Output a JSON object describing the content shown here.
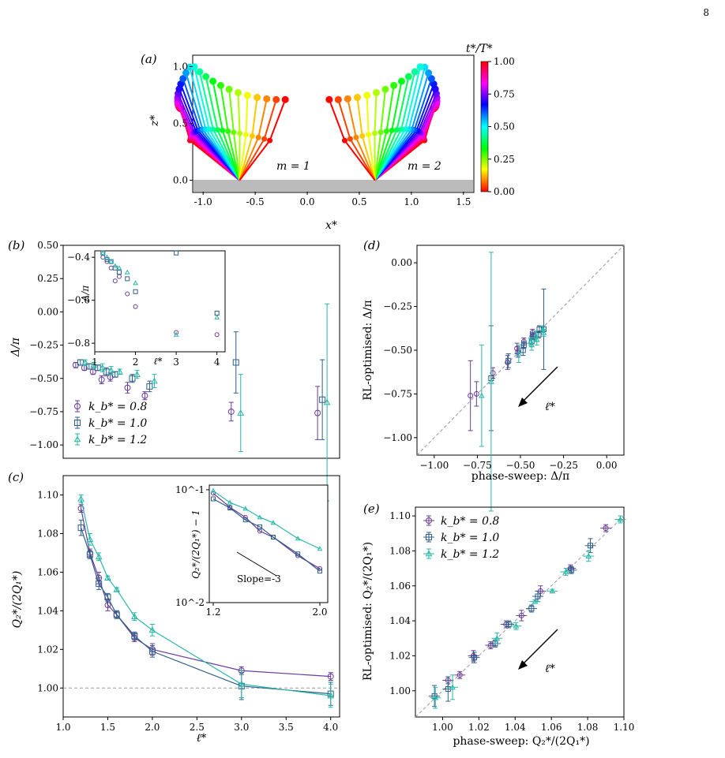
{
  "page_number": "8",
  "colors": {
    "purple": "#6a3d9a",
    "blue": "#2f5f8a",
    "teal": "#2ab7a9"
  },
  "legend_labels": [
    "k_b* = 0.8",
    "k_b* = 1.0",
    "k_b* = 1.2"
  ],
  "panels": {
    "a": {
      "label": "(a)",
      "chart_data": {
        "type": "line",
        "xlabel": "x*",
        "ylabel": "z*",
        "xlim": [
          -1.1,
          1.6
        ],
        "ylim": [
          -0.1,
          1.1
        ],
        "xticks": [
          "-1.0",
          "-0.5",
          "0.0",
          "0.5",
          "1.0",
          "1.5"
        ],
        "yticks": [
          "0.0",
          "0.5",
          "1.0"
        ],
        "annotations": [
          "m = 1",
          "m = 2"
        ],
        "colorbar": {
          "label": "t*/T*",
          "ticks": [
            "0.00",
            "0.25",
            "0.50",
            "0.75",
            "1.00"
          ]
        }
      }
    },
    "b": {
      "label": "(b)",
      "chart_data": {
        "type": "scatter",
        "xlabel": "",
        "ylabel": "Δ/π",
        "ylim": [
          -1.1,
          0.5
        ],
        "yticks": [
          "0.50",
          "0.25",
          "0.00",
          "−0.25",
          "−0.50",
          "−0.75",
          "−1.00"
        ],
        "legend": "lower-left",
        "series": [
          {
            "name": "k_b* = 0.8",
            "x": [
              1.2,
              1.3,
              1.4,
              1.5,
              1.6,
              1.8,
              2.0,
              3.0,
              4.0
            ],
            "y": [
              -0.4,
              -0.42,
              -0.45,
              -0.51,
              -0.49,
              -0.57,
              -0.63,
              -0.75,
              -0.76
            ],
            "err": [
              0.02,
              0.02,
              0.02,
              0.03,
              0.03,
              0.04,
              0.03,
              0.07,
              0.2
            ]
          },
          {
            "name": "k_b* = 1.0",
            "x": [
              1.2,
              1.3,
              1.4,
              1.5,
              1.6,
              1.8,
              2.0,
              3.0,
              4.0
            ],
            "y": [
              -0.38,
              -0.41,
              -0.42,
              -0.45,
              -0.47,
              -0.5,
              -0.56,
              -0.38,
              -0.66
            ],
            "err": [
              0.02,
              0.02,
              0.02,
              0.03,
              0.02,
              0.03,
              0.04,
              0.23,
              0.3
            ]
          },
          {
            "name": "k_b* = 1.2",
            "x": [
              1.2,
              1.3,
              1.4,
              1.5,
              1.6,
              1.8,
              2.0,
              3.0,
              4.0
            ],
            "y": [
              -0.38,
              -0.4,
              -0.42,
              -0.44,
              -0.45,
              -0.47,
              -0.52,
              -0.76,
              -0.68
            ],
            "err": [
              0.02,
              0.02,
              0.03,
              0.03,
              0.02,
              0.03,
              0.05,
              0.29,
              0.74
            ]
          }
        ],
        "inset": {
          "xlabel": "ℓ*",
          "ylabel": "Δ/π",
          "xlim": [
            1.0,
            4.2
          ],
          "ylim": [
            -0.84,
            -0.37
          ],
          "xticks": [
            "1",
            "2",
            "3",
            "4"
          ],
          "yticks": [
            "−0.4",
            "−0.6",
            "−0.8"
          ]
        }
      }
    },
    "c": {
      "label": "(c)",
      "chart_data": {
        "type": "line",
        "xlabel": "ℓ*",
        "ylabel": "Q2*/(2Q1*)",
        "xlim": [
          1.0,
          4.1
        ],
        "ylim": [
          0.985,
          1.11
        ],
        "xticks": [
          "1.0",
          "1.5",
          "2.0",
          "2.5",
          "3.0",
          "3.5",
          "4.0"
        ],
        "yticks": [
          "1.00",
          "1.02",
          "1.04",
          "1.06",
          "1.08",
          "1.10"
        ],
        "series": [
          {
            "name": "k_b* = 0.8",
            "x": [
              1.2,
              1.3,
              1.4,
              1.5,
              1.6,
              1.8,
              2.0,
              3.0,
              4.0
            ],
            "y": [
              1.093,
              1.07,
              1.057,
              1.043,
              1.038,
              1.026,
              1.02,
              1.009,
              1.006
            ],
            "err": [
              0.002,
              0.002,
              0.003,
              0.003,
              0.002,
              0.002,
              0.003,
              0.002,
              0.002
            ]
          },
          {
            "name": "k_b* = 1.0",
            "x": [
              1.2,
              1.3,
              1.4,
              1.5,
              1.6,
              1.8,
              2.0,
              3.0,
              4.0
            ],
            "y": [
              1.083,
              1.069,
              1.054,
              1.047,
              1.038,
              1.027,
              1.019,
              1.001,
              0.997
            ],
            "err": [
              0.004,
              0.002,
              0.003,
              0.002,
              0.002,
              0.002,
              0.003,
              0.007,
              0.006
            ]
          },
          {
            "name": "k_b* = 1.2",
            "x": [
              1.2,
              1.3,
              1.4,
              1.5,
              1.6,
              1.8,
              2.0,
              3.0,
              4.0
            ],
            "y": [
              1.098,
              1.077,
              1.068,
              1.057,
              1.051,
              1.037,
              1.03,
              1.002,
              0.996
            ],
            "err": [
              0.002,
              0.003,
              0.002,
              0.001,
              0.001,
              0.002,
              0.003,
              0.007,
              0.006
            ]
          }
        ],
        "reference_line": 1.0,
        "inset": {
          "xlabel": "",
          "ylabel": "Q2*/(2Q1*) − 1",
          "xscale": "log",
          "yscale": "log",
          "xticks": [
            "1.2",
            "2.0"
          ],
          "yticks": [
            "10^-1",
            "10^-2"
          ],
          "annotation": "Slope=-3"
        }
      }
    },
    "d": {
      "label": "(d)",
      "chart_data": {
        "type": "scatter",
        "xlabel": "phase-sweep: Δ/π",
        "ylabel": "RL-optimised: Δ/π",
        "xlim": [
          -1.1,
          0.1
        ],
        "ylim": [
          -1.1,
          0.1
        ],
        "xticks": [
          "−1.00",
          "−0.75",
          "−0.50",
          "−0.25",
          "0.00"
        ],
        "yticks": [
          "0.00",
          "−0.25",
          "−0.50",
          "−0.75",
          "−1.00"
        ],
        "annotation": "ℓ*"
      }
    },
    "e": {
      "label": "(e)",
      "chart_data": {
        "type": "scatter",
        "xlabel": "phase-sweep: Q2*/(2Q1*)",
        "ylabel": "RL-optimised: Q2*/(2Q1*)",
        "xlim": [
          0.985,
          1.1
        ],
        "ylim": [
          0.985,
          1.105
        ],
        "xticks": [
          "1.00",
          "1.02",
          "1.04",
          "1.06",
          "1.08",
          "1.10"
        ],
        "yticks": [
          "1.00",
          "1.02",
          "1.04",
          "1.06",
          "1.08",
          "1.10"
        ],
        "legend": "top-left",
        "annotation": "ℓ*"
      }
    }
  }
}
